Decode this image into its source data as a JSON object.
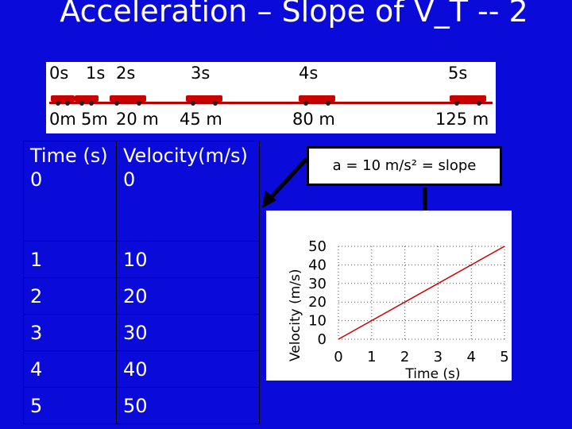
{
  "title": "Acceleration – Slope of V_T -- 2",
  "strip": {
    "times": [
      "0s",
      "1s",
      "2s",
      "3s",
      "4s",
      "5s"
    ],
    "distances": [
      "0m",
      "5m",
      "20 m",
      "45 m",
      "80 m",
      "125 m"
    ]
  },
  "table": {
    "header_time": "Time (s)",
    "header_velocity": "Velocity(m/s)",
    "rows": [
      {
        "time": "0",
        "velocity": "0"
      },
      {
        "time": "1",
        "velocity": "10"
      },
      {
        "time": "2",
        "velocity": "20"
      },
      {
        "time": "3",
        "velocity": "30"
      },
      {
        "time": "4",
        "velocity": "40"
      },
      {
        "time": "5",
        "velocity": "50"
      }
    ]
  },
  "formula": "a = 10 m/s² = slope",
  "colors": {
    "background": "#0b0bd9",
    "line": "#cc0000"
  },
  "chart_data": {
    "type": "line",
    "x": [
      0,
      1,
      2,
      3,
      4,
      5
    ],
    "series": [
      {
        "values": [
          0,
          10,
          20,
          30,
          40,
          50
        ]
      }
    ],
    "xlabel": "Time (s)",
    "ylabel": "Velocity (m/s)",
    "xticks": [
      "0",
      "1",
      "2",
      "3",
      "4",
      "5"
    ],
    "yticks": [
      "0",
      "10",
      "20",
      "30",
      "40",
      "50"
    ],
    "xlim": [
      0,
      5
    ],
    "ylim": [
      0,
      50
    ],
    "grid": true
  }
}
